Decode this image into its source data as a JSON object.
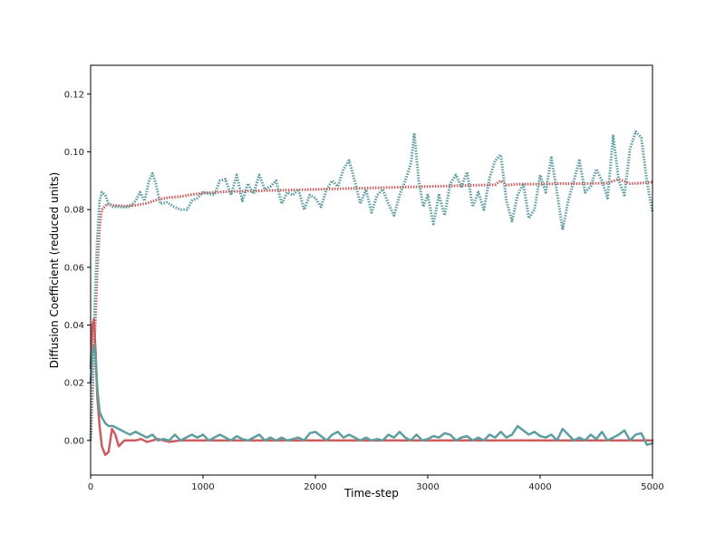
{
  "chart_data": {
    "type": "line",
    "title": "",
    "xlabel": "Time-step",
    "ylabel": "Diffusion Coefficient (reduced units)",
    "xlim": [
      0,
      5000
    ],
    "ylim": [
      -0.012,
      0.13
    ],
    "xticks": [
      0,
      1000,
      2000,
      3000,
      4000,
      5000
    ],
    "yticks": [
      0.0,
      0.02,
      0.04,
      0.06,
      0.08,
      0.1,
      0.12
    ],
    "grid": false,
    "legend": "none",
    "series": [
      {
        "color": "#cd5c5c",
        "style": "dotted",
        "points": [
          [
            0,
            0.0
          ],
          [
            20,
            0.02
          ],
          [
            40,
            0.04
          ],
          [
            60,
            0.06
          ],
          [
            80,
            0.074
          ],
          [
            100,
            0.08
          ],
          [
            150,
            0.082
          ],
          [
            200,
            0.0815
          ],
          [
            300,
            0.0812
          ],
          [
            400,
            0.0815
          ],
          [
            500,
            0.0822
          ],
          [
            600,
            0.0835
          ],
          [
            700,
            0.0842
          ],
          [
            800,
            0.0845
          ],
          [
            900,
            0.0852
          ],
          [
            1000,
            0.0857
          ],
          [
            1200,
            0.0862
          ],
          [
            1400,
            0.0864
          ],
          [
            1600,
            0.0866
          ],
          [
            1800,
            0.0868
          ],
          [
            2000,
            0.087
          ],
          [
            2200,
            0.0872
          ],
          [
            2400,
            0.0874
          ],
          [
            2600,
            0.0876
          ],
          [
            2800,
            0.0878
          ],
          [
            3000,
            0.088
          ],
          [
            3200,
            0.0882
          ],
          [
            3400,
            0.0884
          ],
          [
            3600,
            0.0886
          ],
          [
            3650,
            0.09
          ],
          [
            3700,
            0.0885
          ],
          [
            3800,
            0.0888
          ],
          [
            4000,
            0.0888
          ],
          [
            4200,
            0.089
          ],
          [
            4400,
            0.089
          ],
          [
            4600,
            0.0892
          ],
          [
            4700,
            0.0905
          ],
          [
            4800,
            0.089
          ],
          [
            4900,
            0.0892
          ],
          [
            5000,
            0.0895
          ]
        ]
      },
      {
        "color": "#5f9ea0",
        "style": "dotted",
        "points": [
          [
            0,
            0.0
          ],
          [
            20,
            0.03
          ],
          [
            40,
            0.05
          ],
          [
            60,
            0.07
          ],
          [
            80,
            0.083
          ],
          [
            100,
            0.086
          ],
          [
            130,
            0.085
          ],
          [
            160,
            0.082
          ],
          [
            200,
            0.081
          ],
          [
            250,
            0.081
          ],
          [
            300,
            0.0808
          ],
          [
            350,
            0.081
          ],
          [
            400,
            0.083
          ],
          [
            440,
            0.086
          ],
          [
            480,
            0.083
          ],
          [
            520,
            0.09
          ],
          [
            550,
            0.0925
          ],
          [
            580,
            0.089
          ],
          [
            620,
            0.082
          ],
          [
            680,
            0.0825
          ],
          [
            740,
            0.081
          ],
          [
            800,
            0.08
          ],
          [
            860,
            0.08
          ],
          [
            900,
            0.083
          ],
          [
            950,
            0.084
          ],
          [
            1000,
            0.086
          ],
          [
            1050,
            0.0855
          ],
          [
            1100,
            0.085
          ],
          [
            1150,
            0.09
          ],
          [
            1200,
            0.0905
          ],
          [
            1250,
            0.085
          ],
          [
            1300,
            0.092
          ],
          [
            1350,
            0.083
          ],
          [
            1400,
            0.089
          ],
          [
            1450,
            0.0855
          ],
          [
            1500,
            0.092
          ],
          [
            1550,
            0.087
          ],
          [
            1600,
            0.088
          ],
          [
            1650,
            0.09
          ],
          [
            1700,
            0.082
          ],
          [
            1750,
            0.086
          ],
          [
            1800,
            0.085
          ],
          [
            1850,
            0.087
          ],
          [
            1900,
            0.08
          ],
          [
            1950,
            0.085
          ],
          [
            2000,
            0.084
          ],
          [
            2050,
            0.081
          ],
          [
            2100,
            0.087
          ],
          [
            2150,
            0.09
          ],
          [
            2200,
            0.088
          ],
          [
            2250,
            0.094
          ],
          [
            2300,
            0.097
          ],
          [
            2350,
            0.09
          ],
          [
            2400,
            0.082
          ],
          [
            2450,
            0.087
          ],
          [
            2500,
            0.079
          ],
          [
            2550,
            0.085
          ],
          [
            2600,
            0.087
          ],
          [
            2650,
            0.082
          ],
          [
            2700,
            0.078
          ],
          [
            2750,
            0.085
          ],
          [
            2800,
            0.09
          ],
          [
            2850,
            0.096
          ],
          [
            2880,
            0.1065
          ],
          [
            2920,
            0.09
          ],
          [
            2960,
            0.081
          ],
          [
            3000,
            0.085
          ],
          [
            3050,
            0.075
          ],
          [
            3100,
            0.085
          ],
          [
            3150,
            0.078
          ],
          [
            3200,
            0.089
          ],
          [
            3250,
            0.092
          ],
          [
            3300,
            0.088
          ],
          [
            3350,
            0.093
          ],
          [
            3400,
            0.081
          ],
          [
            3450,
            0.086
          ],
          [
            3500,
            0.08
          ],
          [
            3550,
            0.091
          ],
          [
            3600,
            0.097
          ],
          [
            3650,
            0.099
          ],
          [
            3700,
            0.083
          ],
          [
            3750,
            0.076
          ],
          [
            3800,
            0.085
          ],
          [
            3850,
            0.089
          ],
          [
            3900,
            0.077
          ],
          [
            3950,
            0.08
          ],
          [
            4000,
            0.092
          ],
          [
            4050,
            0.086
          ],
          [
            4100,
            0.098
          ],
          [
            4150,
            0.086
          ],
          [
            4200,
            0.073
          ],
          [
            4250,
            0.083
          ],
          [
            4300,
            0.09
          ],
          [
            4350,
            0.097
          ],
          [
            4400,
            0.086
          ],
          [
            4450,
            0.088
          ],
          [
            4500,
            0.094
          ],
          [
            4550,
            0.09
          ],
          [
            4600,
            0.084
          ],
          [
            4650,
            0.1055
          ],
          [
            4700,
            0.09
          ],
          [
            4750,
            0.085
          ],
          [
            4800,
            0.101
          ],
          [
            4850,
            0.107
          ],
          [
            4900,
            0.105
          ],
          [
            4950,
            0.09
          ],
          [
            5000,
            0.079
          ]
        ]
      },
      {
        "color": "#cd5c5c",
        "style": "solid",
        "points": [
          [
            0,
            0.025
          ],
          [
            15,
            0.04
          ],
          [
            30,
            0.042
          ],
          [
            45,
            0.03
          ],
          [
            60,
            0.015
          ],
          [
            80,
            0.005
          ],
          [
            100,
            -0.002
          ],
          [
            130,
            -0.005
          ],
          [
            160,
            -0.004
          ],
          [
            190,
            0.004
          ],
          [
            220,
            0.002
          ],
          [
            250,
            -0.002
          ],
          [
            300,
            0.0
          ],
          [
            350,
            0.0
          ],
          [
            400,
            0.0
          ],
          [
            450,
            0.0005
          ],
          [
            500,
            -0.0005
          ],
          [
            550,
            0.0
          ],
          [
            600,
            0.0005
          ],
          [
            650,
            0.0
          ],
          [
            700,
            -0.0005
          ],
          [
            800,
            0.0
          ],
          [
            900,
            0.0
          ],
          [
            1000,
            0.0
          ],
          [
            1500,
            0.0
          ],
          [
            2000,
            0.0
          ],
          [
            2500,
            0.0
          ],
          [
            3000,
            0.0
          ],
          [
            3500,
            0.0
          ],
          [
            4000,
            0.0
          ],
          [
            4500,
            0.0
          ],
          [
            5000,
            0.0
          ]
        ]
      },
      {
        "color": "#5f9ea0",
        "style": "solid",
        "points": [
          [
            0,
            0.02
          ],
          [
            15,
            0.03
          ],
          [
            30,
            0.033
          ],
          [
            45,
            0.028
          ],
          [
            60,
            0.018
          ],
          [
            80,
            0.01
          ],
          [
            100,
            0.008
          ],
          [
            130,
            0.006
          ],
          [
            160,
            0.005
          ],
          [
            200,
            0.005
          ],
          [
            250,
            0.004
          ],
          [
            300,
            0.003
          ],
          [
            350,
            0.002
          ],
          [
            400,
            0.003
          ],
          [
            450,
            0.002
          ],
          [
            500,
            0.001
          ],
          [
            550,
            0.002
          ],
          [
            600,
            0.0
          ],
          [
            650,
            0.0005
          ],
          [
            700,
            0.0
          ],
          [
            750,
            0.002
          ],
          [
            800,
            0.0
          ],
          [
            850,
            0.001
          ],
          [
            900,
            0.002
          ],
          [
            950,
            0.001
          ],
          [
            1000,
            0.002
          ],
          [
            1050,
            0.0
          ],
          [
            1100,
            0.001
          ],
          [
            1150,
            0.002
          ],
          [
            1200,
            0.001
          ],
          [
            1250,
            0.0
          ],
          [
            1300,
            0.0015
          ],
          [
            1350,
            0.0005
          ],
          [
            1400,
            0.0
          ],
          [
            1450,
            0.001
          ],
          [
            1500,
            0.002
          ],
          [
            1550,
            0.0
          ],
          [
            1600,
            0.001
          ],
          [
            1650,
            0.0
          ],
          [
            1700,
            0.001
          ],
          [
            1750,
            0.0
          ],
          [
            1800,
            0.0005
          ],
          [
            1850,
            0.001
          ],
          [
            1900,
            0.0
          ],
          [
            1950,
            0.0025
          ],
          [
            2000,
            0.003
          ],
          [
            2050,
            0.0015
          ],
          [
            2100,
            0.0
          ],
          [
            2150,
            0.002
          ],
          [
            2200,
            0.003
          ],
          [
            2250,
            0.001
          ],
          [
            2300,
            0.002
          ],
          [
            2350,
            0.001
          ],
          [
            2400,
            0.0
          ],
          [
            2450,
            0.001
          ],
          [
            2500,
            0.0
          ],
          [
            2550,
            0.0005
          ],
          [
            2600,
            0.0
          ],
          [
            2650,
            0.002
          ],
          [
            2700,
            0.001
          ],
          [
            2750,
            0.003
          ],
          [
            2800,
            0.001
          ],
          [
            2850,
            0.0
          ],
          [
            2900,
            0.002
          ],
          [
            2950,
            0.0
          ],
          [
            3000,
            0.0005
          ],
          [
            3050,
            0.0015
          ],
          [
            3100,
            0.001
          ],
          [
            3150,
            0.0025
          ],
          [
            3200,
            0.002
          ],
          [
            3250,
            0.0
          ],
          [
            3300,
            0.001
          ],
          [
            3350,
            0.0015
          ],
          [
            3400,
            0.0
          ],
          [
            3450,
            0.001
          ],
          [
            3500,
            0.0
          ],
          [
            3550,
            0.002
          ],
          [
            3600,
            0.001
          ],
          [
            3650,
            0.003
          ],
          [
            3700,
            0.001
          ],
          [
            3750,
            0.002
          ],
          [
            3800,
            0.005
          ],
          [
            3850,
            0.0035
          ],
          [
            3900,
            0.002
          ],
          [
            3950,
            0.003
          ],
          [
            4000,
            0.0015
          ],
          [
            4050,
            0.001
          ],
          [
            4100,
            0.002
          ],
          [
            4150,
            0.0
          ],
          [
            4200,
            0.004
          ],
          [
            4250,
            0.002
          ],
          [
            4300,
            0.0
          ],
          [
            4350,
            0.001
          ],
          [
            4400,
            0.0
          ],
          [
            4450,
            0.002
          ],
          [
            4500,
            0.0005
          ],
          [
            4550,
            0.003
          ],
          [
            4600,
            0.0
          ],
          [
            4650,
            0.001
          ],
          [
            4700,
            0.002
          ],
          [
            4750,
            0.0035
          ],
          [
            4800,
            0.0
          ],
          [
            4850,
            0.002
          ],
          [
            4900,
            0.0025
          ],
          [
            4950,
            -0.0015
          ],
          [
            5000,
            -0.001
          ]
        ]
      }
    ]
  }
}
